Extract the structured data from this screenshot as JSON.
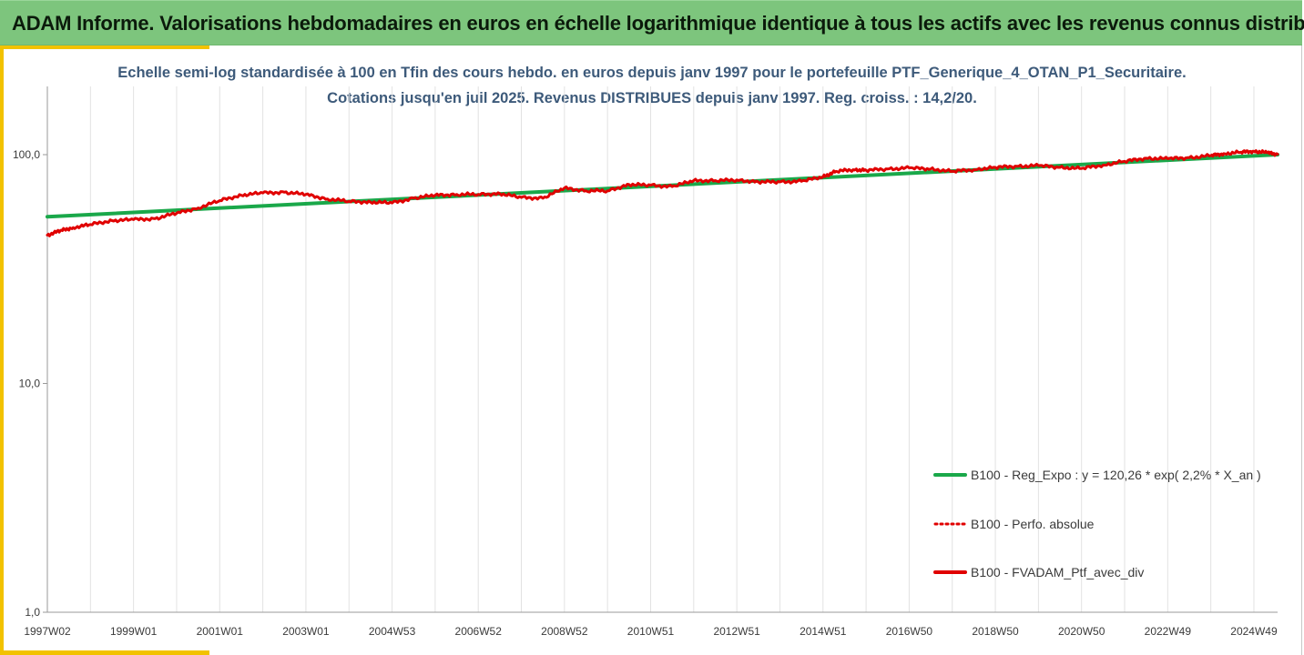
{
  "banner": {
    "title": "ADAM Informe. Valorisations hebdomadaires en euros en échelle logarithmique identique à tous les actifs avec les revenus connus distribués"
  },
  "chart_data": {
    "type": "line",
    "title": "Echelle semi-log standardisée  à 100 en Tfin des cours hebdo.  en euros depuis janv 1997 pour le portefeuille PTF_Generique_4_OTAN_P1_Securitaire.",
    "subtitle": "Cotations  jusqu'en juil 2025. Revenus DISTRIBUES depuis janv 1997. Reg. croiss. : 14,2/20.",
    "xlabel": "",
    "ylabel": "",
    "y_scale": "log",
    "ylim": [
      1,
      200
    ],
    "y_ticks": [
      {
        "value": 1,
        "label": "1,0"
      },
      {
        "value": 10,
        "label": "10,0"
      },
      {
        "value": 100,
        "label": "100,0"
      }
    ],
    "x_range": [
      1997.0,
      2025.55
    ],
    "x_ticks": [
      {
        "x": 1997.0,
        "label": "1997W02"
      },
      {
        "x": 1999.0,
        "label": "1999W01"
      },
      {
        "x": 2001.0,
        "label": "2001W01"
      },
      {
        "x": 2003.0,
        "label": "2003W01"
      },
      {
        "x": 2005.0,
        "label": "2004W53"
      },
      {
        "x": 2007.0,
        "label": "2006W52"
      },
      {
        "x": 2009.0,
        "label": "2008W52"
      },
      {
        "x": 2011.0,
        "label": "2010W51"
      },
      {
        "x": 2013.0,
        "label": "2012W51"
      },
      {
        "x": 2015.0,
        "label": "2014W51"
      },
      {
        "x": 2017.0,
        "label": "2016W50"
      },
      {
        "x": 2019.0,
        "label": "2018W50"
      },
      {
        "x": 2021.0,
        "label": "2020W50"
      },
      {
        "x": 2023.0,
        "label": "2022W49"
      },
      {
        "x": 2025.0,
        "label": "2024W49"
      }
    ],
    "grid": {
      "vertical": true,
      "horizontal": false
    },
    "legend_position": "bottom-right",
    "series": [
      {
        "name": "B100 - Reg_Expo : y = 120,26 * exp( 2,2% *  X_an )",
        "color": "#1aa84a",
        "style": "solid",
        "x": [
          1997.0,
          2025.55
        ],
        "values": [
          53.5,
          100.0
        ]
      },
      {
        "name": "B100 - Perfo. absolue",
        "color": "#e00000",
        "style": "dotted",
        "x": [],
        "values": []
      },
      {
        "name": "B100 - FVADAM_Ptf_avec_div",
        "color": "#e00000",
        "style": "solid",
        "x": [
          1997.0,
          1997.3,
          1997.6,
          1998.0,
          1998.5,
          1999.0,
          1999.5,
          2000.0,
          2000.5,
          2001.0,
          2001.5,
          2002.0,
          2002.5,
          2003.0,
          2003.5,
          2004.0,
          2004.5,
          2005.0,
          2005.5,
          2006.0,
          2006.5,
          2007.0,
          2007.5,
          2008.0,
          2008.5,
          2009.0,
          2009.5,
          2010.0,
          2010.5,
          2011.0,
          2011.5,
          2012.0,
          2012.5,
          2013.0,
          2013.5,
          2014.0,
          2014.5,
          2015.0,
          2015.3,
          2015.7,
          2016.0,
          2016.5,
          2017.0,
          2017.5,
          2018.0,
          2018.5,
          2019.0,
          2019.5,
          2020.0,
          2020.5,
          2021.0,
          2021.5,
          2022.0,
          2022.5,
          2023.0,
          2023.5,
          2024.0,
          2024.3,
          2024.7,
          2025.0,
          2025.3,
          2025.55
        ],
        "values": [
          44.5,
          46.5,
          48.0,
          49.5,
          51.5,
          52.0,
          52.5,
          55.5,
          58.5,
          63.0,
          66.5,
          68.0,
          68.5,
          67.0,
          64.0,
          62.5,
          62.0,
          61.5,
          64.5,
          66.5,
          67.0,
          67.0,
          67.5,
          65.0,
          64.5,
          71.5,
          69.5,
          69.5,
          74.0,
          73.5,
          72.5,
          77.0,
          77.0,
          77.5,
          76.0,
          76.0,
          76.5,
          80.0,
          84.5,
          86.0,
          85.5,
          86.5,
          87.5,
          86.5,
          84.5,
          86.0,
          88.0,
          89.0,
          89.5,
          88.0,
          87.0,
          90.0,
          93.5,
          96.5,
          96.0,
          97.0,
          99.0,
          101.0,
          102.5,
          103.5,
          102.0,
          100.5
        ]
      }
    ]
  }
}
